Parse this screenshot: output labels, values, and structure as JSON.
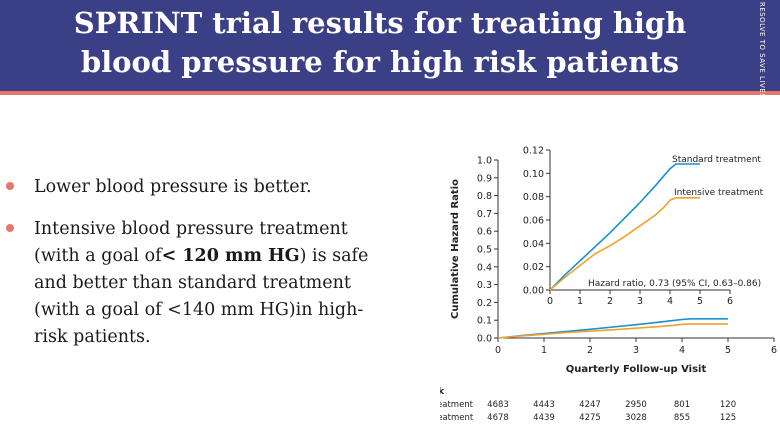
{
  "header": {
    "title_line1": "SPRINT trial results for treating high",
    "title_line2": "blood pressure for high risk patients",
    "watermark": "RESOLVE TO SAVE LIVES",
    "background_color": "#3b3f86",
    "stripe_color": "#e8756a"
  },
  "bullets": [
    {
      "text": "Lower blood pressure is better."
    },
    {
      "text_before": "Intensive blood pressure treatment (with a goal of",
      "text_bold": "< 120 mm HG",
      "text_after": ") is safe and better than standard treatment (with a goal of <140 mm HG)in high-risk patients."
    }
  ],
  "chart_data": {
    "type": "line",
    "xlabel": "Quarterly Follow-up Visit",
    "ylabel": "Cumulative Hazard Ratio",
    "xlim": [
      0,
      6
    ],
    "ylim": [
      0,
      1.0
    ],
    "x_ticks": [
      "0",
      "1",
      "2",
      "3",
      "4",
      "5",
      "6"
    ],
    "y_ticks": [
      "0.0",
      "0.1",
      "0.2",
      "0.3",
      "0.4",
      "0.5",
      "0.6",
      "0.7",
      "0.8",
      "0.9",
      "1.0"
    ],
    "series": [
      {
        "name": "Standard treatment",
        "color": "#1a8fd1",
        "x": [
          0,
          0.5,
          1,
          1.5,
          2,
          2.5,
          3,
          3.5,
          3.8,
          4,
          4.2,
          4.5,
          5
        ],
        "y": [
          0,
          0.013,
          0.025,
          0.037,
          0.049,
          0.062,
          0.075,
          0.089,
          0.098,
          0.104,
          0.108,
          0.108,
          0.108
        ]
      },
      {
        "name": "Intensive treatment",
        "color": "#f2a229",
        "x": [
          0,
          0.5,
          1,
          1.5,
          2,
          2.5,
          3,
          3.5,
          3.8,
          4,
          4.2,
          4.5,
          5
        ],
        "y": [
          0,
          0.011,
          0.021,
          0.031,
          0.038,
          0.046,
          0.055,
          0.064,
          0.071,
          0.077,
          0.079,
          0.079,
          0.079
        ]
      }
    ],
    "inset": {
      "xlim": [
        0,
        6
      ],
      "ylim": [
        0,
        0.12
      ],
      "x_ticks": [
        "0",
        "1",
        "2",
        "3",
        "4",
        "5",
        "6"
      ],
      "y_ticks": [
        "0.00",
        "0.02",
        "0.04",
        "0.06",
        "0.08",
        "0.10",
        "0.12"
      ],
      "annotation": "Hazard ratio, 0.73 (95% CI, 0.63–0.86)",
      "standard_label": "Standard treatment",
      "intensive_label": "Intensive treatment"
    },
    "risk_table": {
      "title": "No. at Risk",
      "rows": [
        {
          "label": "Standard treatment",
          "values": [
            "4683",
            "4443",
            "4247",
            "2950",
            "801",
            "120"
          ]
        },
        {
          "label": "Intensive treatment",
          "values": [
            "4678",
            "4439",
            "4275",
            "3028",
            "855",
            "125"
          ]
        }
      ]
    }
  }
}
